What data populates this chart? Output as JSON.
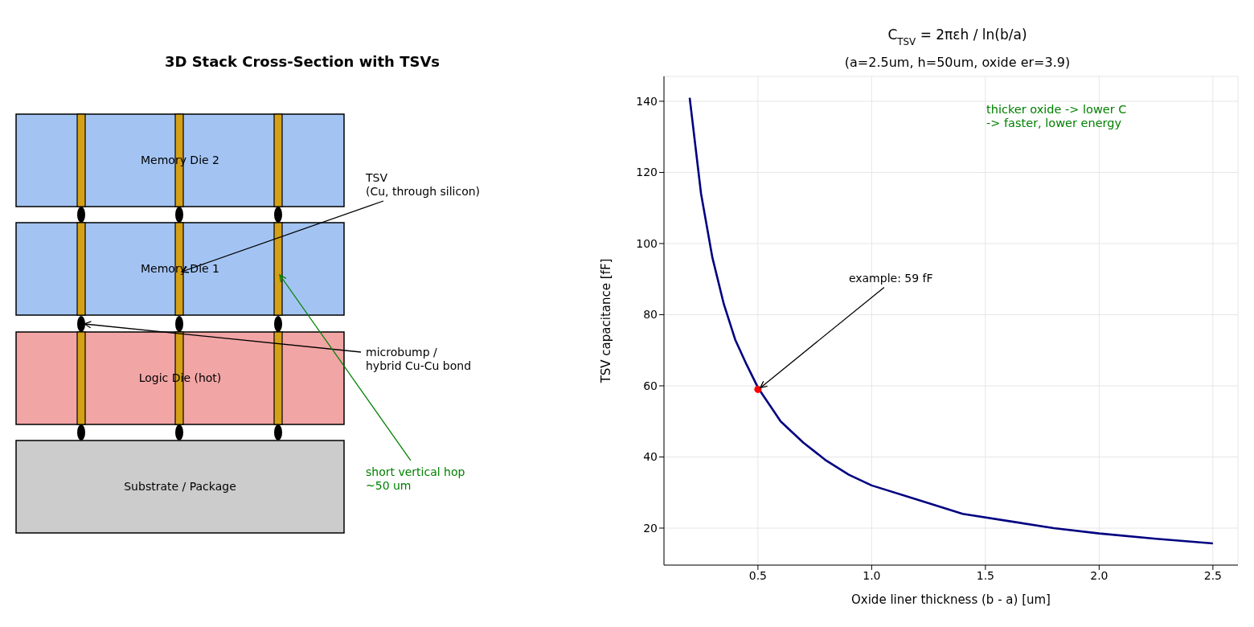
{
  "chart_data": [
    {
      "type": "other",
      "title": "3D Stack Cross-Section with TSVs",
      "annotations": [
        "Memory Die 2",
        "Memory Die 1",
        "Logic Die (hot)",
        "Substrate / Package",
        "TSV\n(Cu, through silicon)",
        "microbump /\nhybrid Cu-Cu bond",
        "short vertical hop\n~50 um"
      ]
    },
    {
      "type": "line",
      "title": "C$_{TSV}$ = 2πεh / ln(b/a)",
      "subtitle": "(a=2.5um, h=50um, oxide er=3.9)",
      "xlabel": "Oxide liner thickness (b - a)  [um]",
      "ylabel": "TSV capacitance  [fF]",
      "xlim": [
        0.087,
        2.61
      ],
      "xticks": [
        {
          "value": 0.5,
          "label": "0.5"
        },
        {
          "value": 1.0,
          "label": "1.0"
        },
        {
          "value": 1.5,
          "label": "1.5"
        },
        {
          "value": 2.0,
          "label": "2.0"
        },
        {
          "value": 2.5,
          "label": "2.5"
        }
      ],
      "ylim": [
        9.6,
        147
      ],
      "yticks": [
        20,
        40,
        60,
        80,
        100,
        120,
        140
      ],
      "grid": true,
      "series": [
        {
          "color": "#000080",
          "marker": "none",
          "x": [
            0.2,
            0.25,
            0.3,
            0.35,
            0.4,
            0.45,
            0.5,
            0.6,
            0.7,
            0.8,
            0.9,
            1.0,
            1.2,
            1.4,
            1.6,
            1.8,
            2.0,
            2.25,
            2.5
          ],
          "values": [
            141,
            114,
            96,
            83,
            73,
            66,
            59.5,
            50,
            44,
            39,
            35,
            32,
            28,
            24,
            22,
            20,
            18.5,
            17,
            15.7
          ]
        },
        {
          "type": "scatter",
          "color": "#ff0000",
          "marker": "circle",
          "x": [
            0.5
          ],
          "values": [
            59
          ]
        }
      ],
      "annotations": [
        {
          "text": "example: 59 fF",
          "x": 0.5,
          "y": 59
        },
        "thicker oxide -> lower C\n-> faster, lower energy"
      ]
    }
  ]
}
